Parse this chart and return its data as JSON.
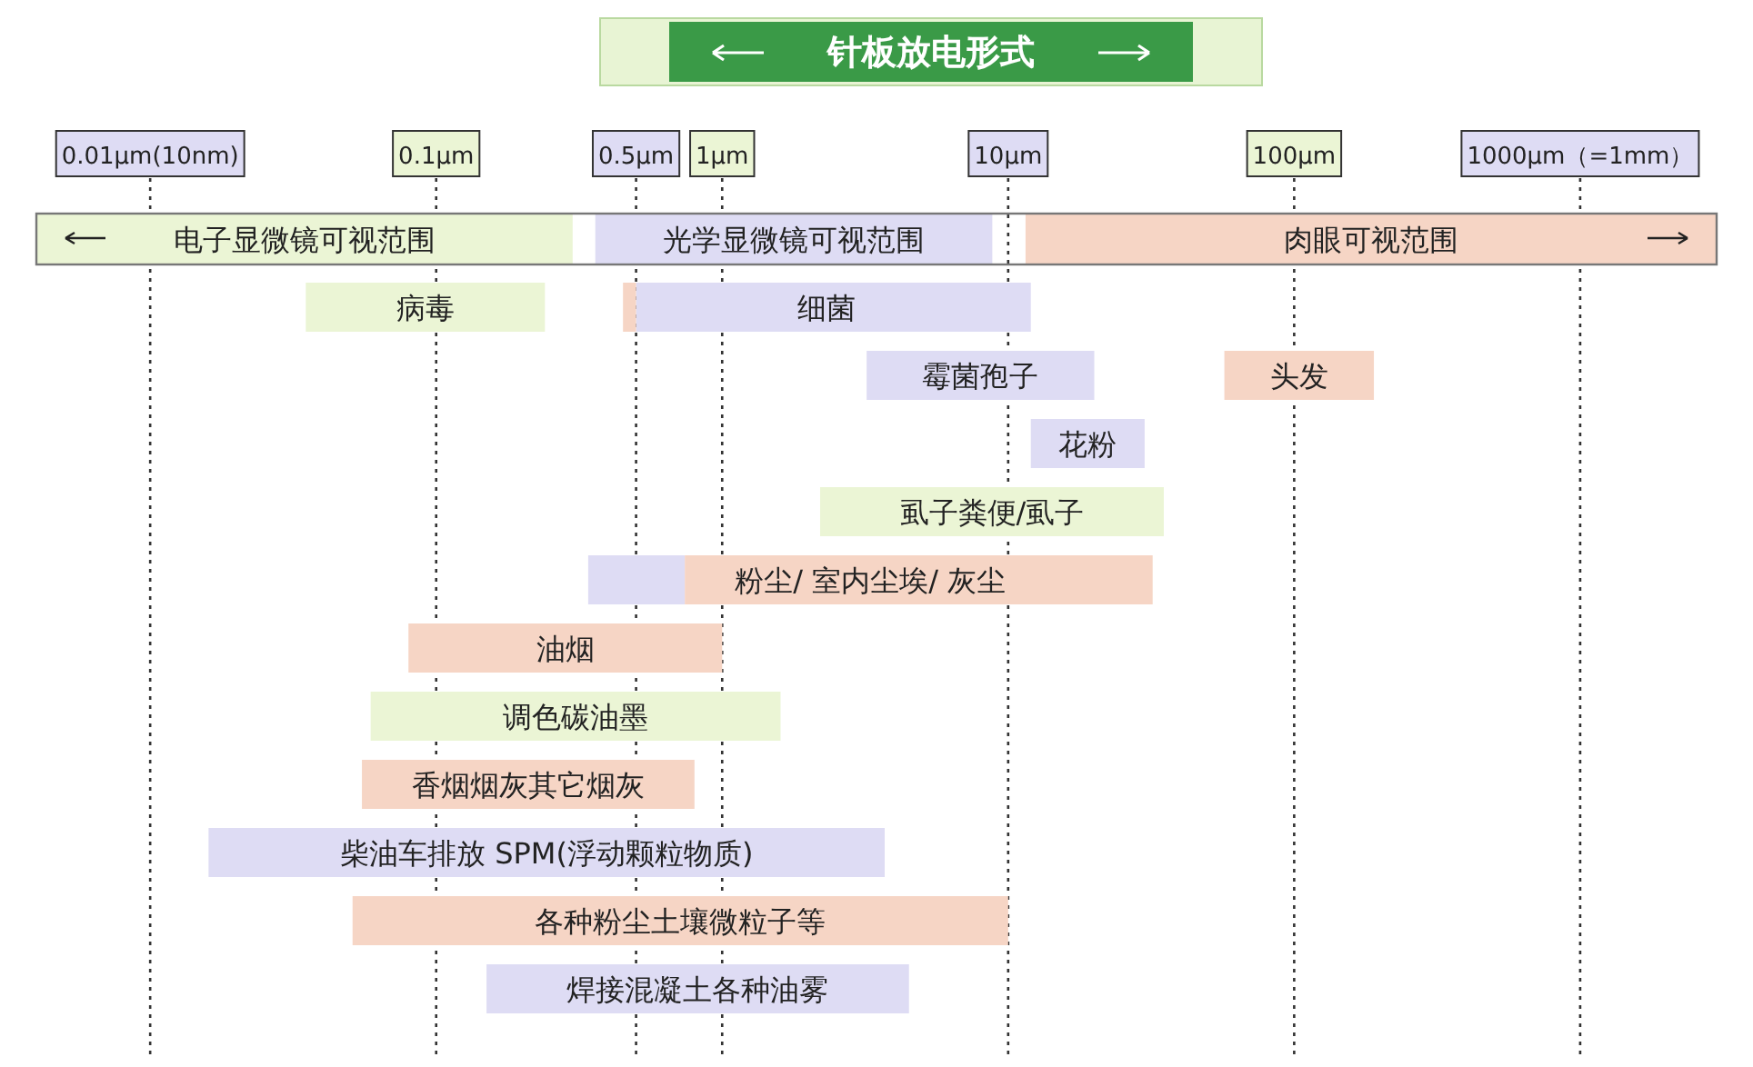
{
  "chart_data": {
    "type": "bar",
    "orientation": "horizontal",
    "title": "针板放电形式",
    "categories": [
      null,
      null,
      null,
      null,
      null,
      null,
      null,
      null,
      null,
      null,
      null,
      null
    ],
    "series": [
      {
        "color": "#ebf5d5",
        "base": [
          0.004,
          0.035,
          null,
          null,
          2.2,
          null,
          null,
          0.059,
          null,
          null,
          null,
          null
        ],
        "values": [
          0.296,
          0.205,
          null,
          null,
          32.8,
          null,
          null,
          1.541,
          null,
          null,
          null,
          null
        ],
        "value_labels": [
          "电子显微镜可视范围",
          "病毒",
          null,
          null,
          "虱子粪便/虱子",
          null,
          null,
          "调色碳油墨",
          null,
          null,
          null,
          null
        ]
      },
      {
        "color": "#dedcf4",
        "base": [
          0.36,
          0.5,
          3.2,
          12,
          null,
          0.34,
          null,
          null,
          null,
          0.016,
          null,
          0.15
        ],
        "values": [
          8.44,
          11.5,
          16.8,
          18,
          null,
          0.4,
          null,
          null,
          null,
          3.684,
          null,
          4.35
        ],
        "value_labels": [
          "光学显微镜可视范围",
          "细菌",
          "霉菌孢子",
          "花粉",
          null,
          null,
          null,
          null,
          null,
          "柴油车排放 SPM(浮动颗粒物质)",
          null,
          "焊接混凝土各种油雾"
        ]
      },
      {
        "color": "#f6d5c5",
        "base": [
          11.5,
          0.45,
          57,
          null,
          null,
          0.74,
          0.08,
          null,
          0.055,
          null,
          0.051,
          null
        ],
        "values": [
          2988.5,
          0.05,
          133,
          null,
          null,
          31.26,
          0.92,
          null,
          0.745,
          null,
          9.949,
          null
        ],
        "value_labels": [
          "肉眼可视范围",
          null,
          "头发",
          null,
          null,
          "粉尘/ 室内尘埃/ 灰尘",
          "油烟",
          null,
          "香烟烟灰其它烟灰",
          null,
          "各种粉尘土壤微粒子等",
          null
        ]
      }
    ],
    "log": "x",
    "xlim": [
      0.004,
      3000
    ],
    "xticks": [
      {
        "value": 0.01,
        "label": "0.01µm(10nm)"
      },
      {
        "value": 0.1,
        "label": "0.1µm"
      },
      {
        "value": 0.5,
        "label": "0.5µm"
      },
      {
        "value": 1,
        "label": "1µm"
      },
      {
        "value": 10,
        "label": "10µm"
      },
      {
        "value": 100,
        "label": "100µm"
      },
      {
        "value": 1000,
        "label": "1000µm（=1mm）"
      }
    ],
    "grid": "x"
  }
}
